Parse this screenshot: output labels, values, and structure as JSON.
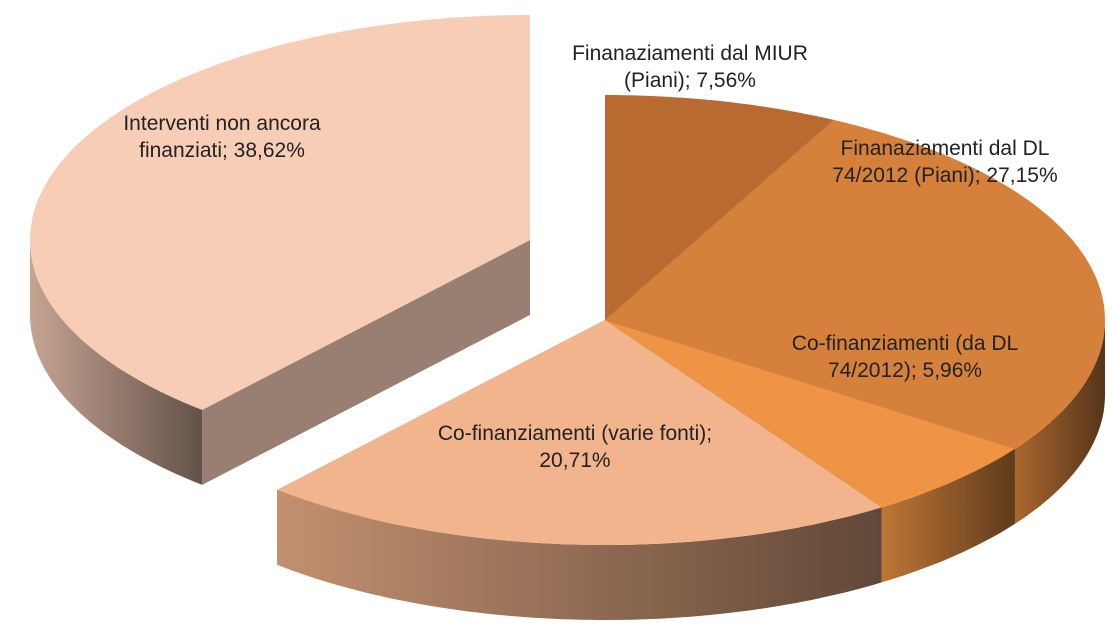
{
  "chart_data": {
    "type": "pie3d",
    "values": [
      7.56,
      27.15,
      5.96,
      20.71,
      38.62
    ],
    "value_labels": [
      "Finanaziamenti dal MIUR (Piani); 7,56%",
      "Finanaziamenti dal DL 74/2012 (Piani); 27,15%",
      "Co-finanziamenti (da DL 74/2012); 5,96%",
      "Co-finanziamenti (varie fonti); 20,71%",
      "Interventi non ancora finanziati; 38,62%"
    ],
    "colors": [
      "#b86a30",
      "#d5813c",
      "#ee9444",
      "#f2b48c",
      "#f7cdb6"
    ],
    "exploded": [
      false,
      false,
      false,
      false,
      true
    ]
  }
}
